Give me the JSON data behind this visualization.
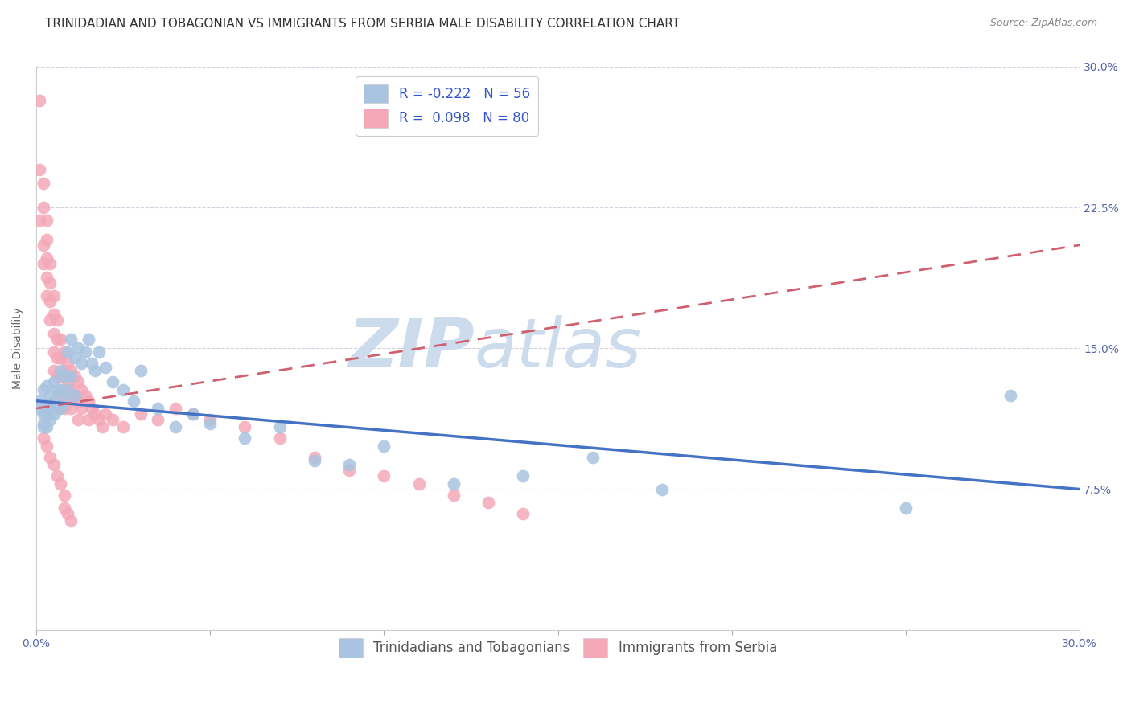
{
  "title": "TRINIDADIAN AND TOBAGONIAN VS IMMIGRANTS FROM SERBIA MALE DISABILITY CORRELATION CHART",
  "source": "Source: ZipAtlas.com",
  "ylabel": "Male Disability",
  "xlim": [
    0,
    0.3
  ],
  "ylim": [
    0,
    0.3
  ],
  "xticks": [
    0.0,
    0.05,
    0.1,
    0.15,
    0.2,
    0.25,
    0.3
  ],
  "yticks": [
    0.0,
    0.075,
    0.15,
    0.225,
    0.3
  ],
  "xticklabels_left": "0.0%",
  "xticklabels_right": "30.0%",
  "yticklabels": [
    "",
    "7.5%",
    "15.0%",
    "22.5%",
    "30.0%"
  ],
  "series1_label": "Trinidadians and Tobagonians",
  "series2_label": "Immigrants from Serbia",
  "series1_R": "-0.222",
  "series1_N": "56",
  "series2_R": "0.098",
  "series2_N": "80",
  "series1_color": "#a8c4e0",
  "series2_color": "#f4a8b8",
  "trend1_color": "#4472c4",
  "trend2_color": "#d06070",
  "watermark": "ZIPatlas",
  "watermark_color": "#ccdcec",
  "background_color": "#ffffff",
  "grid_color": "#d0d0e0",
  "title_fontsize": 11,
  "axis_label_fontsize": 10,
  "tick_fontsize": 10,
  "legend_fontsize": 12,
  "series1_x": [
    0.001,
    0.001,
    0.002,
    0.002,
    0.002,
    0.002,
    0.003,
    0.003,
    0.003,
    0.003,
    0.004,
    0.004,
    0.004,
    0.005,
    0.005,
    0.005,
    0.006,
    0.006,
    0.007,
    0.007,
    0.007,
    0.008,
    0.008,
    0.009,
    0.009,
    0.01,
    0.01,
    0.011,
    0.011,
    0.012,
    0.013,
    0.014,
    0.015,
    0.016,
    0.017,
    0.018,
    0.02,
    0.022,
    0.025,
    0.028,
    0.03,
    0.035,
    0.04,
    0.045,
    0.05,
    0.06,
    0.07,
    0.08,
    0.09,
    0.1,
    0.12,
    0.14,
    0.16,
    0.18,
    0.25,
    0.28
  ],
  "series1_y": [
    0.122,
    0.118,
    0.128,
    0.115,
    0.11,
    0.108,
    0.13,
    0.12,
    0.115,
    0.108,
    0.125,
    0.118,
    0.112,
    0.132,
    0.122,
    0.115,
    0.128,
    0.118,
    0.138,
    0.128,
    0.118,
    0.135,
    0.122,
    0.148,
    0.128,
    0.155,
    0.135,
    0.145,
    0.125,
    0.15,
    0.142,
    0.148,
    0.155,
    0.142,
    0.138,
    0.148,
    0.14,
    0.132,
    0.128,
    0.122,
    0.138,
    0.118,
    0.108,
    0.115,
    0.11,
    0.102,
    0.108,
    0.09,
    0.088,
    0.098,
    0.078,
    0.082,
    0.092,
    0.075,
    0.065,
    0.125
  ],
  "series2_x": [
    0.001,
    0.001,
    0.001,
    0.002,
    0.002,
    0.002,
    0.002,
    0.003,
    0.003,
    0.003,
    0.003,
    0.003,
    0.004,
    0.004,
    0.004,
    0.004,
    0.005,
    0.005,
    0.005,
    0.005,
    0.005,
    0.006,
    0.006,
    0.006,
    0.006,
    0.007,
    0.007,
    0.007,
    0.007,
    0.008,
    0.008,
    0.008,
    0.008,
    0.009,
    0.009,
    0.009,
    0.01,
    0.01,
    0.01,
    0.011,
    0.011,
    0.012,
    0.012,
    0.012,
    0.013,
    0.013,
    0.014,
    0.015,
    0.015,
    0.016,
    0.017,
    0.018,
    0.019,
    0.02,
    0.022,
    0.025,
    0.03,
    0.035,
    0.04,
    0.045,
    0.05,
    0.06,
    0.07,
    0.08,
    0.09,
    0.1,
    0.11,
    0.12,
    0.13,
    0.14,
    0.002,
    0.003,
    0.004,
    0.005,
    0.006,
    0.007,
    0.008,
    0.008,
    0.009,
    0.01
  ],
  "series2_y": [
    0.282,
    0.245,
    0.218,
    0.238,
    0.225,
    0.205,
    0.195,
    0.218,
    0.208,
    0.198,
    0.188,
    0.178,
    0.195,
    0.185,
    0.175,
    0.165,
    0.178,
    0.168,
    0.158,
    0.148,
    0.138,
    0.165,
    0.155,
    0.145,
    0.135,
    0.155,
    0.145,
    0.135,
    0.125,
    0.148,
    0.138,
    0.128,
    0.118,
    0.142,
    0.132,
    0.122,
    0.138,
    0.128,
    0.118,
    0.135,
    0.125,
    0.132,
    0.122,
    0.112,
    0.128,
    0.118,
    0.125,
    0.122,
    0.112,
    0.118,
    0.115,
    0.112,
    0.108,
    0.115,
    0.112,
    0.108,
    0.115,
    0.112,
    0.118,
    0.115,
    0.112,
    0.108,
    0.102,
    0.092,
    0.085,
    0.082,
    0.078,
    0.072,
    0.068,
    0.062,
    0.102,
    0.098,
    0.092,
    0.088,
    0.082,
    0.078,
    0.072,
    0.065,
    0.062,
    0.058
  ],
  "trend1_x0": 0.0,
  "trend1_y0": 0.122,
  "trend1_x1": 0.3,
  "trend1_y1": 0.075,
  "trend2_x0": 0.0,
  "trend2_y0": 0.118,
  "trend2_x1": 0.3,
  "trend2_y1": 0.205
}
